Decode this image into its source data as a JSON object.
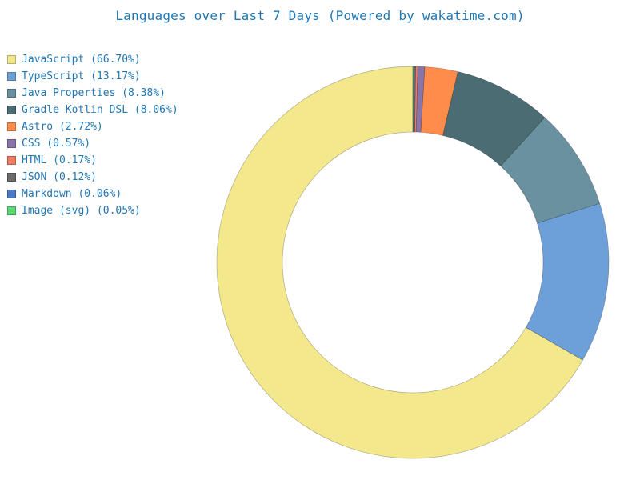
{
  "chart_data": {
    "type": "pie",
    "variant": "donut",
    "title": "Languages over Last 7 Days (Powered by wakatime.com)",
    "legend_position": "top-left",
    "slices": [
      {
        "label": "JavaScript",
        "value": 66.7,
        "legend": "JavaScript (66.70%)",
        "color": "#f3e88c"
      },
      {
        "label": "TypeScript",
        "value": 13.17,
        "legend": "TypeScript (13.17%)",
        "color": "#6d9fd9"
      },
      {
        "label": "Java Properties",
        "value": 8.38,
        "legend": "Java Properties (8.38%)",
        "color": "#6a919f"
      },
      {
        "label": "Gradle Kotlin DSL",
        "value": 8.06,
        "legend": "Gradle Kotlin DSL (8.06%)",
        "color": "#4a6c72"
      },
      {
        "label": "Astro",
        "value": 2.72,
        "legend": "Astro (2.72%)",
        "color": "#ff8c4a"
      },
      {
        "label": "CSS",
        "value": 0.57,
        "legend": "CSS (0.57%)",
        "color": "#8a74a8"
      },
      {
        "label": "HTML",
        "value": 0.17,
        "legend": "HTML (0.17%)",
        "color": "#ef7b62"
      },
      {
        "label": "JSON",
        "value": 0.12,
        "legend": "JSON (0.12%)",
        "color": "#6b6b6b"
      },
      {
        "label": "Markdown",
        "value": 0.06,
        "legend": "Markdown (0.06%)",
        "color": "#4d7ac7"
      },
      {
        "label": "Image (svg)",
        "value": 0.05,
        "legend": "Image (svg) (0.05%)",
        "color": "#5dd875"
      }
    ]
  }
}
